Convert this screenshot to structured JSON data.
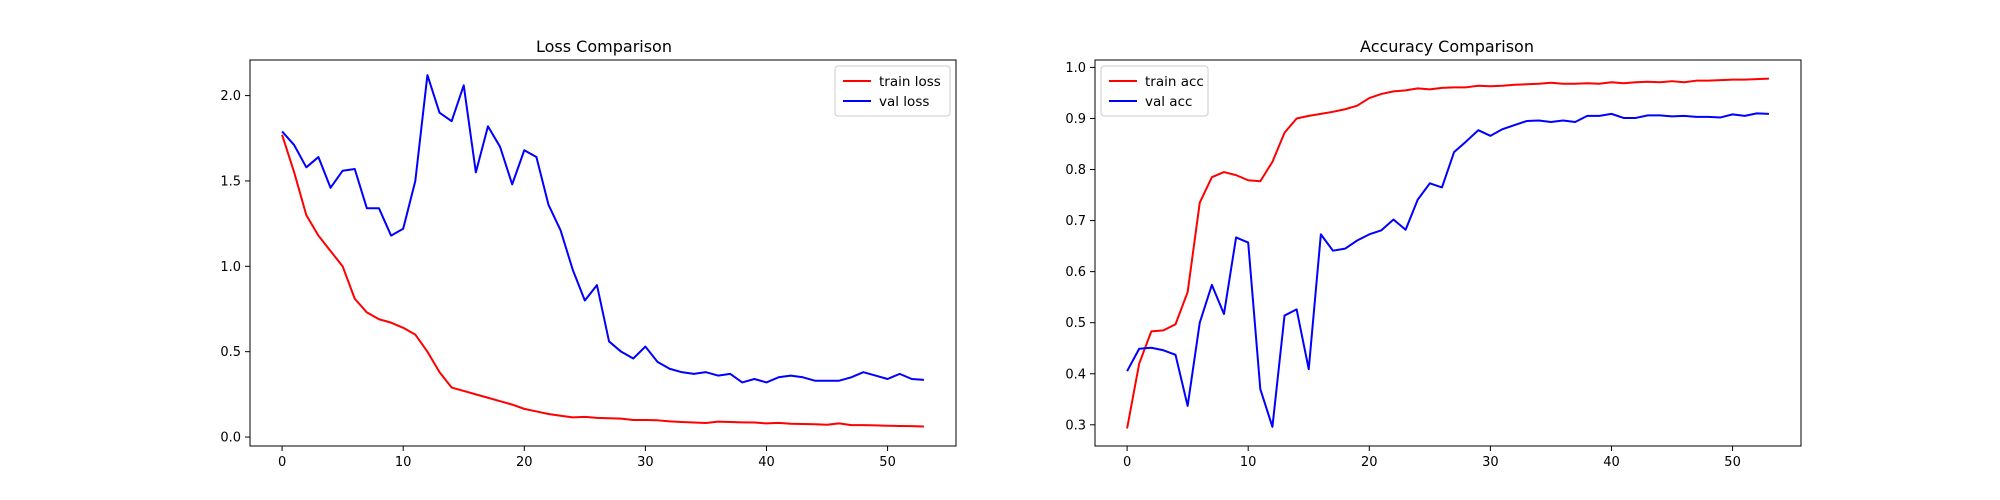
{
  "chart_data": [
    {
      "type": "line",
      "title": "Loss Comparison",
      "xlabel": "",
      "ylabel": "",
      "xlim": [
        -2.65,
        55.65
      ],
      "ylim": [
        -0.0525,
        2.2085
      ],
      "xticks": [
        0,
        10,
        20,
        30,
        40,
        50
      ],
      "yticks": [
        0.0,
        0.5,
        1.0,
        1.5,
        2.0
      ],
      "ytick_format": 1,
      "legend": "top-right",
      "grid": false,
      "x": [
        0,
        1,
        2,
        3,
        4,
        5,
        6,
        7,
        8,
        9,
        10,
        11,
        12,
        13,
        14,
        15,
        16,
        17,
        18,
        19,
        20,
        21,
        22,
        23,
        24,
        25,
        26,
        27,
        28,
        29,
        30,
        31,
        32,
        33,
        34,
        35,
        36,
        37,
        38,
        39,
        40,
        41,
        42,
        43,
        44,
        45,
        46,
        47,
        48,
        49,
        50,
        51,
        52,
        53
      ],
      "series": [
        {
          "name": "train loss",
          "color": "#ff0000",
          "values": [
            1.77,
            1.55,
            1.3,
            1.18,
            1.09,
            1.0,
            0.81,
            0.73,
            0.69,
            0.67,
            0.64,
            0.6,
            0.5,
            0.38,
            0.29,
            0.27,
            0.25,
            0.23,
            0.21,
            0.19,
            0.165,
            0.15,
            0.135,
            0.125,
            0.115,
            0.118,
            0.112,
            0.11,
            0.108,
            0.1,
            0.1,
            0.098,
            0.092,
            0.088,
            0.085,
            0.082,
            0.09,
            0.088,
            0.086,
            0.085,
            0.08,
            0.083,
            0.078,
            0.076,
            0.075,
            0.072,
            0.08,
            0.07,
            0.07,
            0.068,
            0.066,
            0.065,
            0.064,
            0.062
          ]
        },
        {
          "name": "val loss",
          "color": "#0000ff",
          "values": [
            1.79,
            1.71,
            1.58,
            1.64,
            1.46,
            1.56,
            1.57,
            1.34,
            1.34,
            1.18,
            1.22,
            1.5,
            2.12,
            1.9,
            1.85,
            2.06,
            1.55,
            1.82,
            1.7,
            1.48,
            1.68,
            1.64,
            1.36,
            1.21,
            0.98,
            0.8,
            0.89,
            0.56,
            0.5,
            0.46,
            0.53,
            0.44,
            0.4,
            0.38,
            0.37,
            0.38,
            0.36,
            0.37,
            0.32,
            0.34,
            0.32,
            0.35,
            0.36,
            0.35,
            0.33,
            0.33,
            0.33,
            0.35,
            0.38,
            0.36,
            0.34,
            0.37,
            0.34,
            0.335
          ]
        }
      ]
    },
    {
      "type": "line",
      "title": "Accuracy Comparison",
      "xlabel": "",
      "ylabel": "",
      "xlim": [
        -2.65,
        55.65
      ],
      "ylim": [
        0.2585,
        1.0145
      ],
      "xticks": [
        0,
        10,
        20,
        30,
        40,
        50
      ],
      "yticks": [
        0.3,
        0.4,
        0.5,
        0.6,
        0.7,
        0.8,
        0.9,
        1.0
      ],
      "ytick_format": 1,
      "legend": "top-left",
      "grid": false,
      "x": [
        0,
        1,
        2,
        3,
        4,
        5,
        6,
        7,
        8,
        9,
        10,
        11,
        12,
        13,
        14,
        15,
        16,
        17,
        18,
        19,
        20,
        21,
        22,
        23,
        24,
        25,
        26,
        27,
        28,
        29,
        30,
        31,
        32,
        33,
        34,
        35,
        36,
        37,
        38,
        39,
        40,
        41,
        42,
        43,
        44,
        45,
        46,
        47,
        48,
        49,
        50,
        51,
        52,
        53
      ],
      "series": [
        {
          "name": "train acc",
          "color": "#ff0000",
          "values": [
            0.293,
            0.42,
            0.483,
            0.485,
            0.497,
            0.56,
            0.735,
            0.785,
            0.795,
            0.789,
            0.779,
            0.777,
            0.815,
            0.872,
            0.9,
            0.905,
            0.909,
            0.913,
            0.918,
            0.925,
            0.94,
            0.948,
            0.953,
            0.955,
            0.959,
            0.957,
            0.96,
            0.961,
            0.961,
            0.964,
            0.963,
            0.964,
            0.966,
            0.967,
            0.968,
            0.97,
            0.968,
            0.968,
            0.969,
            0.968,
            0.971,
            0.969,
            0.971,
            0.972,
            0.971,
            0.973,
            0.971,
            0.974,
            0.974,
            0.975,
            0.976,
            0.976,
            0.977,
            0.978
          ]
        },
        {
          "name": "val acc",
          "color": "#0000ff",
          "values": [
            0.405,
            0.449,
            0.451,
            0.446,
            0.437,
            0.337,
            0.5,
            0.574,
            0.517,
            0.667,
            0.657,
            0.37,
            0.296,
            0.514,
            0.526,
            0.409,
            0.673,
            0.641,
            0.645,
            0.661,
            0.673,
            0.681,
            0.702,
            0.682,
            0.741,
            0.773,
            0.765,
            0.834,
            0.855,
            0.877,
            0.866,
            0.879,
            0.887,
            0.895,
            0.896,
            0.893,
            0.896,
            0.893,
            0.905,
            0.905,
            0.909,
            0.901,
            0.901,
            0.906,
            0.906,
            0.904,
            0.905,
            0.903,
            0.903,
            0.902,
            0.908,
            0.905,
            0.91,
            0.909
          ]
        }
      ]
    }
  ]
}
